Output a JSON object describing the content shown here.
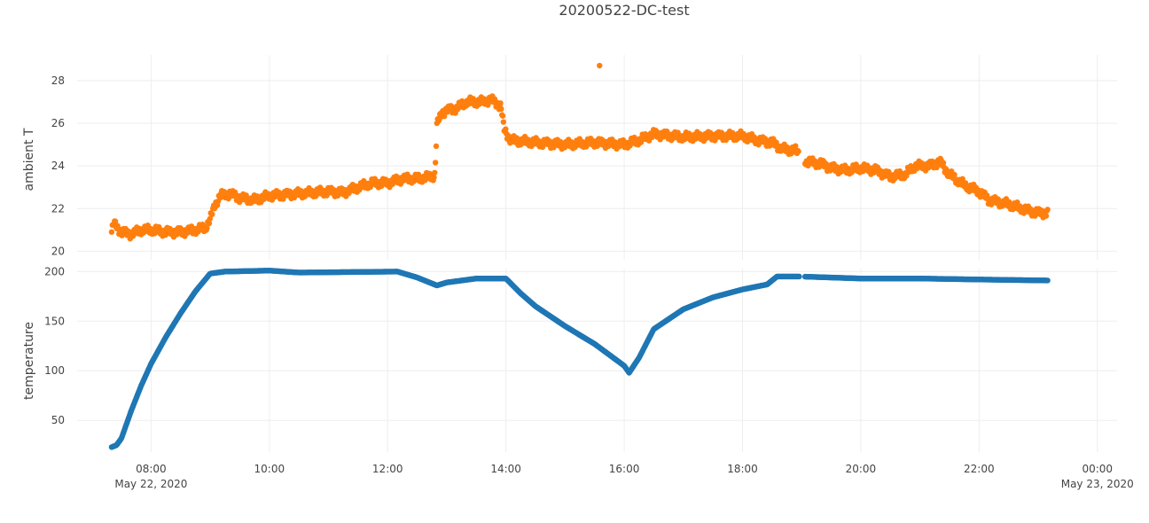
{
  "chart_data": {
    "type": "scatter",
    "title": "20200522-DC-test",
    "x_axis": {
      "type": "date",
      "range": [
        "2020-05-22T06:45",
        "2020-05-23T00:20"
      ],
      "ticks": [
        {
          "t": "2020-05-22T08:00",
          "label": "08:00",
          "sub": "May 22, 2020"
        },
        {
          "t": "2020-05-22T10:00",
          "label": "10:00",
          "sub": ""
        },
        {
          "t": "2020-05-22T12:00",
          "label": "12:00",
          "sub": ""
        },
        {
          "t": "2020-05-22T14:00",
          "label": "14:00",
          "sub": ""
        },
        {
          "t": "2020-05-22T16:00",
          "label": "16:00",
          "sub": ""
        },
        {
          "t": "2020-05-22T18:00",
          "label": "18:00",
          "sub": ""
        },
        {
          "t": "2020-05-22T20:00",
          "label": "20:00",
          "sub": ""
        },
        {
          "t": "2020-05-22T22:00",
          "label": "22:00",
          "sub": ""
        },
        {
          "t": "2020-05-23T00:00",
          "label": "00:00",
          "sub": "May 23, 2020"
        }
      ]
    },
    "subplots": [
      {
        "ylabel": "ambient T",
        "ylim": [
          19.6,
          29.2
        ],
        "yticks": [
          20,
          22,
          24,
          26,
          28
        ],
        "series": [
          {
            "color": "#ff7f0e",
            "points": [
              [
                "2020-05-22T07:20",
                20.9
              ],
              [
                "2020-05-22T07:22",
                21.3
              ],
              [
                "2020-05-22T07:30",
                20.9
              ],
              [
                "2020-05-22T07:40",
                20.8
              ],
              [
                "2020-05-22T07:50",
                21.0
              ],
              [
                "2020-05-22T08:00",
                21.0
              ],
              [
                "2020-05-22T08:15",
                20.9
              ],
              [
                "2020-05-22T08:30",
                20.9
              ],
              [
                "2020-05-22T08:45",
                21.0
              ],
              [
                "2020-05-22T08:55",
                21.1
              ],
              [
                "2020-05-22T09:00",
                21.5
              ],
              [
                "2020-05-22T09:05",
                22.2
              ],
              [
                "2020-05-22T09:10",
                22.6
              ],
              [
                "2020-05-22T09:20",
                22.7
              ],
              [
                "2020-05-22T09:30",
                22.5
              ],
              [
                "2020-05-22T09:45",
                22.4
              ],
              [
                "2020-05-22T10:00",
                22.6
              ],
              [
                "2020-05-22T10:30",
                22.7
              ],
              [
                "2020-05-22T11:00",
                22.8
              ],
              [
                "2020-05-22T11:15",
                22.75
              ],
              [
                "2020-05-22T11:30",
                23.0
              ],
              [
                "2020-05-22T11:45",
                23.2
              ],
              [
                "2020-05-22T12:00",
                23.2
              ],
              [
                "2020-05-22T12:15",
                23.4
              ],
              [
                "2020-05-22T12:30",
                23.4
              ],
              [
                "2020-05-22T12:45",
                23.5
              ],
              [
                "2020-05-22T12:48",
                23.6
              ],
              [
                "2020-05-22T12:50",
                25.9
              ],
              [
                "2020-05-22T12:55",
                26.5
              ],
              [
                "2020-05-22T13:00",
                26.6
              ],
              [
                "2020-05-22T13:10",
                26.7
              ],
              [
                "2020-05-22T13:20",
                27.0
              ],
              [
                "2020-05-22T13:35",
                27.0
              ],
              [
                "2020-05-22T13:45",
                27.1
              ],
              [
                "2020-05-22T13:55",
                26.8
              ],
              [
                "2020-05-22T13:58",
                25.7
              ],
              [
                "2020-05-22T14:05",
                25.2
              ],
              [
                "2020-05-22T14:30",
                25.1
              ],
              [
                "2020-05-22T15:00",
                25.0
              ],
              [
                "2020-05-22T15:30",
                25.1
              ],
              [
                "2020-05-22T16:00",
                25.0
              ],
              [
                "2020-05-22T16:15",
                25.2
              ],
              [
                "2020-05-22T16:30",
                25.5
              ],
              [
                "2020-05-22T17:00",
                25.35
              ],
              [
                "2020-05-22T17:30",
                25.4
              ],
              [
                "2020-05-22T18:00",
                25.4
              ],
              [
                "2020-05-22T18:15",
                25.2
              ],
              [
                "2020-05-22T18:30",
                25.1
              ],
              [
                "2020-05-22T18:40",
                24.8
              ],
              [
                "2020-05-22T18:55",
                24.7
              ],
              [
                "2020-05-22T19:05",
                24.2
              ],
              [
                "2020-05-22T19:20",
                24.1
              ],
              [
                "2020-05-22T19:30",
                23.9
              ],
              [
                "2020-05-22T19:45",
                23.8
              ],
              [
                "2020-05-22T20:00",
                23.9
              ],
              [
                "2020-05-22T20:15",
                23.8
              ],
              [
                "2020-05-22T20:30",
                23.5
              ],
              [
                "2020-05-22T20:45",
                23.6
              ],
              [
                "2020-05-22T20:55",
                24.0
              ],
              [
                "2020-05-22T21:10",
                24.0
              ],
              [
                "2020-05-22T21:20",
                24.2
              ],
              [
                "2020-05-22T21:30",
                23.6
              ],
              [
                "2020-05-22T21:45",
                23.1
              ],
              [
                "2020-05-22T22:00",
                22.8
              ],
              [
                "2020-05-22T22:10",
                22.4
              ],
              [
                "2020-05-22T22:30",
                22.2
              ],
              [
                "2020-05-22T22:50",
                21.9
              ],
              [
                "2020-05-22T23:00",
                21.8
              ],
              [
                "2020-05-22T23:10",
                21.8
              ]
            ],
            "gaps": [
              [
                "2020-05-22T18:57",
                "2020-05-22T19:03"
              ]
            ],
            "outliers": [
              [
                "2020-05-22T15:35",
                28.7
              ]
            ]
          }
        ]
      },
      {
        "ylabel": "temperature",
        "ylim": [
          18,
          203
        ],
        "yticks": [
          50,
          100,
          150,
          200
        ],
        "series": [
          {
            "color": "#1f77b4",
            "points": [
              [
                "2020-05-22T07:20",
                23
              ],
              [
                "2020-05-22T07:25",
                25
              ],
              [
                "2020-05-22T07:30",
                32
              ],
              [
                "2020-05-22T07:40",
                60
              ],
              [
                "2020-05-22T07:50",
                85
              ],
              [
                "2020-05-22T08:00",
                107
              ],
              [
                "2020-05-22T08:15",
                134
              ],
              [
                "2020-05-22T08:30",
                158
              ],
              [
                "2020-05-22T08:45",
                180
              ],
              [
                "2020-05-22T09:00",
                198
              ],
              [
                "2020-05-22T09:15",
                200
              ],
              [
                "2020-05-22T10:00",
                201
              ],
              [
                "2020-05-22T10:30",
                199
              ],
              [
                "2020-05-22T12:10",
                200
              ],
              [
                "2020-05-22T12:30",
                194
              ],
              [
                "2020-05-22T12:50",
                186
              ],
              [
                "2020-05-22T13:00",
                189
              ],
              [
                "2020-05-22T13:30",
                193
              ],
              [
                "2020-05-22T14:00",
                193
              ],
              [
                "2020-05-22T14:15",
                178
              ],
              [
                "2020-05-22T14:30",
                165
              ],
              [
                "2020-05-22T15:00",
                145
              ],
              [
                "2020-05-22T15:30",
                127
              ],
              [
                "2020-05-22T16:00",
                105
              ],
              [
                "2020-05-22T16:05",
                98
              ],
              [
                "2020-05-22T16:15",
                113
              ],
              [
                "2020-05-22T16:30",
                142
              ],
              [
                "2020-05-22T17:00",
                162
              ],
              [
                "2020-05-22T17:30",
                174
              ],
              [
                "2020-05-22T18:00",
                182
              ],
              [
                "2020-05-22T18:25",
                187
              ],
              [
                "2020-05-22T18:35",
                195
              ],
              [
                "2020-05-22T19:00",
                195
              ],
              [
                "2020-05-22T20:00",
                193
              ],
              [
                "2020-05-22T21:00",
                193
              ],
              [
                "2020-05-22T22:00",
                192
              ],
              [
                "2020-05-22T23:10",
                191
              ]
            ],
            "gaps": [
              [
                "2020-05-22T18:58",
                "2020-05-22T19:03"
              ]
            ],
            "outliers": []
          }
        ]
      }
    ]
  }
}
